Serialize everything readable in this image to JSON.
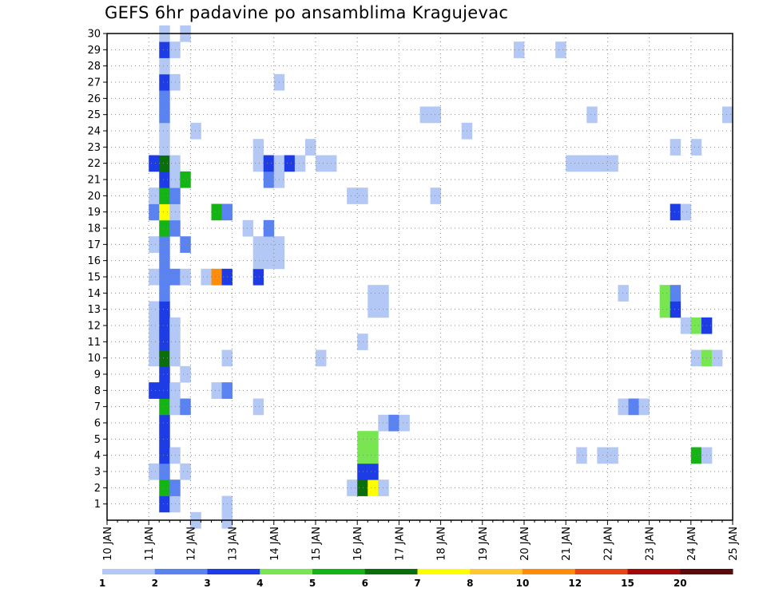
{
  "chart_data": {
    "type": "heatmap",
    "title": "GEFS 6hr padavine po ansamblima Kragujevac",
    "x_ticks": [
      "10 JAN",
      "11 JAN",
      "12 JAN",
      "13 JAN",
      "14 JAN",
      "15 JAN",
      "16 JAN",
      "17 JAN",
      "18 JAN",
      "19 JAN",
      "20 JAN",
      "21 JAN",
      "22 JAN",
      "23 JAN",
      "24 JAN",
      "25 JAN"
    ],
    "y_ticks": [
      "1",
      "2",
      "3",
      "4",
      "5",
      "6",
      "7",
      "8",
      "9",
      "10",
      "11",
      "12",
      "13",
      "14",
      "15",
      "16",
      "17",
      "18",
      "19",
      "20",
      "21",
      "22",
      "23",
      "24",
      "25",
      "26",
      "27",
      "28",
      "29",
      "30"
    ],
    "x_step_hours": 6,
    "grid": true,
    "legend": {
      "placement": "bottom",
      "labels": [
        "1",
        "2",
        "3",
        "4",
        "5",
        "6",
        "7",
        "8",
        "10",
        "12",
        "15",
        "20"
      ],
      "colors": [
        "#b4c8f5",
        "#5a82f0",
        "#1e3ce6",
        "#78e650",
        "#14b414",
        "#0a6e0a",
        "#ffff00",
        "#ffc832",
        "#ff8c0a",
        "#e64614",
        "#a00a0a",
        "#5a0a0a"
      ]
    },
    "cells": [
      {
        "m": 1,
        "t": 5,
        "v": 3
      },
      {
        "m": 1,
        "t": 6,
        "v": 1
      },
      {
        "m": 1,
        "t": 11,
        "v": 1
      },
      {
        "m": 2,
        "t": 5,
        "v": 5
      },
      {
        "m": 2,
        "t": 6,
        "v": 2
      },
      {
        "m": 2,
        "t": 23,
        "v": 1
      },
      {
        "m": 2,
        "t": 24,
        "v": 6
      },
      {
        "m": 2,
        "t": 25,
        "v": 7
      },
      {
        "m": 2,
        "t": 26,
        "v": 1
      },
      {
        "m": 3,
        "t": 4,
        "v": 1
      },
      {
        "m": 3,
        "t": 5,
        "v": 2
      },
      {
        "m": 3,
        "t": 7,
        "v": 1
      },
      {
        "m": 3,
        "t": 24,
        "v": 3
      },
      {
        "m": 3,
        "t": 25,
        "v": 3
      },
      {
        "m": 4,
        "t": 5,
        "v": 3
      },
      {
        "m": 4,
        "t": 6,
        "v": 1
      },
      {
        "m": 4,
        "t": 24,
        "v": 4
      },
      {
        "m": 4,
        "t": 25,
        "v": 4
      },
      {
        "m": 4,
        "t": 45,
        "v": 1
      },
      {
        "m": 4,
        "t": 47,
        "v": 1
      },
      {
        "m": 4,
        "t": 48,
        "v": 1
      },
      {
        "m": 4,
        "t": 56,
        "v": 5
      },
      {
        "m": 4,
        "t": 57,
        "v": 1
      },
      {
        "m": 5,
        "t": 5,
        "v": 3
      },
      {
        "m": 5,
        "t": 24,
        "v": 4
      },
      {
        "m": 5,
        "t": 25,
        "v": 4
      },
      {
        "m": 6,
        "t": 5,
        "v": 3
      },
      {
        "m": 6,
        "t": 26,
        "v": 1
      },
      {
        "m": 6,
        "t": 27,
        "v": 2
      },
      {
        "m": 6,
        "t": 28,
        "v": 1
      },
      {
        "m": 7,
        "t": 5,
        "v": 5
      },
      {
        "m": 7,
        "t": 6,
        "v": 1
      },
      {
        "m": 7,
        "t": 7,
        "v": 2
      },
      {
        "m": 7,
        "t": 14,
        "v": 1
      },
      {
        "m": 7,
        "t": 49,
        "v": 1
      },
      {
        "m": 7,
        "t": 50,
        "v": 2
      },
      {
        "m": 7,
        "t": 51,
        "v": 1
      },
      {
        "m": 8,
        "t": 4,
        "v": 3
      },
      {
        "m": 8,
        "t": 5,
        "v": 3
      },
      {
        "m": 8,
        "t": 6,
        "v": 1
      },
      {
        "m": 8,
        "t": 10,
        "v": 1
      },
      {
        "m": 8,
        "t": 11,
        "v": 2
      },
      {
        "m": 9,
        "t": 5,
        "v": 3
      },
      {
        "m": 9,
        "t": 7,
        "v": 1
      },
      {
        "m": 10,
        "t": 4,
        "v": 1
      },
      {
        "m": 10,
        "t": 5,
        "v": 6
      },
      {
        "m": 10,
        "t": 6,
        "v": 1
      },
      {
        "m": 10,
        "t": 11,
        "v": 1
      },
      {
        "m": 10,
        "t": 20,
        "v": 1
      },
      {
        "m": 10,
        "t": 56,
        "v": 1
      },
      {
        "m": 10,
        "t": 57,
        "v": 4
      },
      {
        "m": 10,
        "t": 58,
        "v": 1
      },
      {
        "m": 11,
        "t": 4,
        "v": 1
      },
      {
        "m": 11,
        "t": 5,
        "v": 3
      },
      {
        "m": 11,
        "t": 6,
        "v": 1
      },
      {
        "m": 11,
        "t": 24,
        "v": 1
      },
      {
        "m": 12,
        "t": 4,
        "v": 1
      },
      {
        "m": 12,
        "t": 5,
        "v": 3
      },
      {
        "m": 12,
        "t": 6,
        "v": 1
      },
      {
        "m": 12,
        "t": 55,
        "v": 1
      },
      {
        "m": 12,
        "t": 56,
        "v": 4
      },
      {
        "m": 12,
        "t": 57,
        "v": 3
      },
      {
        "m": 13,
        "t": 4,
        "v": 1
      },
      {
        "m": 13,
        "t": 5,
        "v": 3
      },
      {
        "m": 13,
        "t": 25,
        "v": 1
      },
      {
        "m": 13,
        "t": 26,
        "v": 1
      },
      {
        "m": 13,
        "t": 53,
        "v": 4
      },
      {
        "m": 13,
        "t": 54,
        "v": 3
      },
      {
        "m": 14,
        "t": 5,
        "v": 2
      },
      {
        "m": 14,
        "t": 25,
        "v": 1
      },
      {
        "m": 14,
        "t": 26,
        "v": 1
      },
      {
        "m": 14,
        "t": 49,
        "v": 1
      },
      {
        "m": 14,
        "t": 53,
        "v": 4
      },
      {
        "m": 14,
        "t": 54,
        "v": 2
      },
      {
        "m": 15,
        "t": 4,
        "v": 1
      },
      {
        "m": 15,
        "t": 5,
        "v": 2
      },
      {
        "m": 15,
        "t": 6,
        "v": 2
      },
      {
        "m": 15,
        "t": 7,
        "v": 1
      },
      {
        "m": 15,
        "t": 9,
        "v": 1
      },
      {
        "m": 15,
        "t": 10,
        "v": 9
      },
      {
        "m": 15,
        "t": 11,
        "v": 3
      },
      {
        "m": 15,
        "t": 14,
        "v": 3
      },
      {
        "m": 16,
        "t": 5,
        "v": 2
      },
      {
        "m": 16,
        "t": 14,
        "v": 1
      },
      {
        "m": 16,
        "t": 15,
        "v": 1
      },
      {
        "m": 16,
        "t": 16,
        "v": 1
      },
      {
        "m": 17,
        "t": 4,
        "v": 1
      },
      {
        "m": 17,
        "t": 5,
        "v": 2
      },
      {
        "m": 17,
        "t": 7,
        "v": 2
      },
      {
        "m": 17,
        "t": 14,
        "v": 1
      },
      {
        "m": 17,
        "t": 15,
        "v": 1
      },
      {
        "m": 17,
        "t": 16,
        "v": 1
      },
      {
        "m": 18,
        "t": 5,
        "v": 5
      },
      {
        "m": 18,
        "t": 6,
        "v": 2
      },
      {
        "m": 18,
        "t": 13,
        "v": 1
      },
      {
        "m": 18,
        "t": 15,
        "v": 2
      },
      {
        "m": 19,
        "t": 4,
        "v": 2
      },
      {
        "m": 19,
        "t": 5,
        "v": 7
      },
      {
        "m": 19,
        "t": 6,
        "v": 1
      },
      {
        "m": 19,
        "t": 10,
        "v": 5
      },
      {
        "m": 19,
        "t": 11,
        "v": 2
      },
      {
        "m": 19,
        "t": 54,
        "v": 3
      },
      {
        "m": 19,
        "t": 55,
        "v": 1
      },
      {
        "m": 20,
        "t": 4,
        "v": 1
      },
      {
        "m": 20,
        "t": 5,
        "v": 5
      },
      {
        "m": 20,
        "t": 6,
        "v": 2
      },
      {
        "m": 20,
        "t": 23,
        "v": 1
      },
      {
        "m": 20,
        "t": 24,
        "v": 1
      },
      {
        "m": 20,
        "t": 31,
        "v": 1
      },
      {
        "m": 21,
        "t": 5,
        "v": 3
      },
      {
        "m": 21,
        "t": 6,
        "v": 1
      },
      {
        "m": 21,
        "t": 7,
        "v": 5
      },
      {
        "m": 21,
        "t": 15,
        "v": 2
      },
      {
        "m": 21,
        "t": 16,
        "v": 1
      },
      {
        "m": 22,
        "t": 4,
        "v": 3
      },
      {
        "m": 22,
        "t": 5,
        "v": 6
      },
      {
        "m": 22,
        "t": 6,
        "v": 1
      },
      {
        "m": 22,
        "t": 14,
        "v": 1
      },
      {
        "m": 22,
        "t": 15,
        "v": 3
      },
      {
        "m": 22,
        "t": 16,
        "v": 1
      },
      {
        "m": 22,
        "t": 17,
        "v": 3
      },
      {
        "m": 22,
        "t": 18,
        "v": 1
      },
      {
        "m": 22,
        "t": 20,
        "v": 1
      },
      {
        "m": 22,
        "t": 21,
        "v": 1
      },
      {
        "m": 22,
        "t": 44,
        "v": 1
      },
      {
        "m": 22,
        "t": 45,
        "v": 1
      },
      {
        "m": 22,
        "t": 46,
        "v": 1
      },
      {
        "m": 22,
        "t": 47,
        "v": 1
      },
      {
        "m": 22,
        "t": 48,
        "v": 1
      },
      {
        "m": 23,
        "t": 5,
        "v": 1
      },
      {
        "m": 23,
        "t": 14,
        "v": 1
      },
      {
        "m": 23,
        "t": 19,
        "v": 1
      },
      {
        "m": 23,
        "t": 54,
        "v": 1
      },
      {
        "m": 23,
        "t": 56,
        "v": 1
      },
      {
        "m": 24,
        "t": 5,
        "v": 1
      },
      {
        "m": 24,
        "t": 8,
        "v": 1
      },
      {
        "m": 24,
        "t": 34,
        "v": 1
      },
      {
        "m": 25,
        "t": 5,
        "v": 2
      },
      {
        "m": 25,
        "t": 30,
        "v": 1
      },
      {
        "m": 25,
        "t": 31,
        "v": 1
      },
      {
        "m": 25,
        "t": 46,
        "v": 1
      },
      {
        "m": 25,
        "t": 59,
        "v": 1
      },
      {
        "m": 26,
        "t": 5,
        "v": 2
      },
      {
        "m": 27,
        "t": 5,
        "v": 3
      },
      {
        "m": 27,
        "t": 6,
        "v": 1
      },
      {
        "m": 27,
        "t": 16,
        "v": 1
      },
      {
        "m": 28,
        "t": 5,
        "v": 1
      },
      {
        "m": 29,
        "t": 5,
        "v": 3
      },
      {
        "m": 29,
        "t": 6,
        "v": 1
      },
      {
        "m": 29,
        "t": 39,
        "v": 1
      },
      {
        "m": 29,
        "t": 43,
        "v": 1
      },
      {
        "m": 30,
        "t": 5,
        "v": 1
      },
      {
        "m": 30,
        "t": 7,
        "v": 1
      },
      {
        "m": 0,
        "t": 8,
        "v": 1
      },
      {
        "m": 0,
        "t": 11,
        "v": 1
      }
    ]
  }
}
